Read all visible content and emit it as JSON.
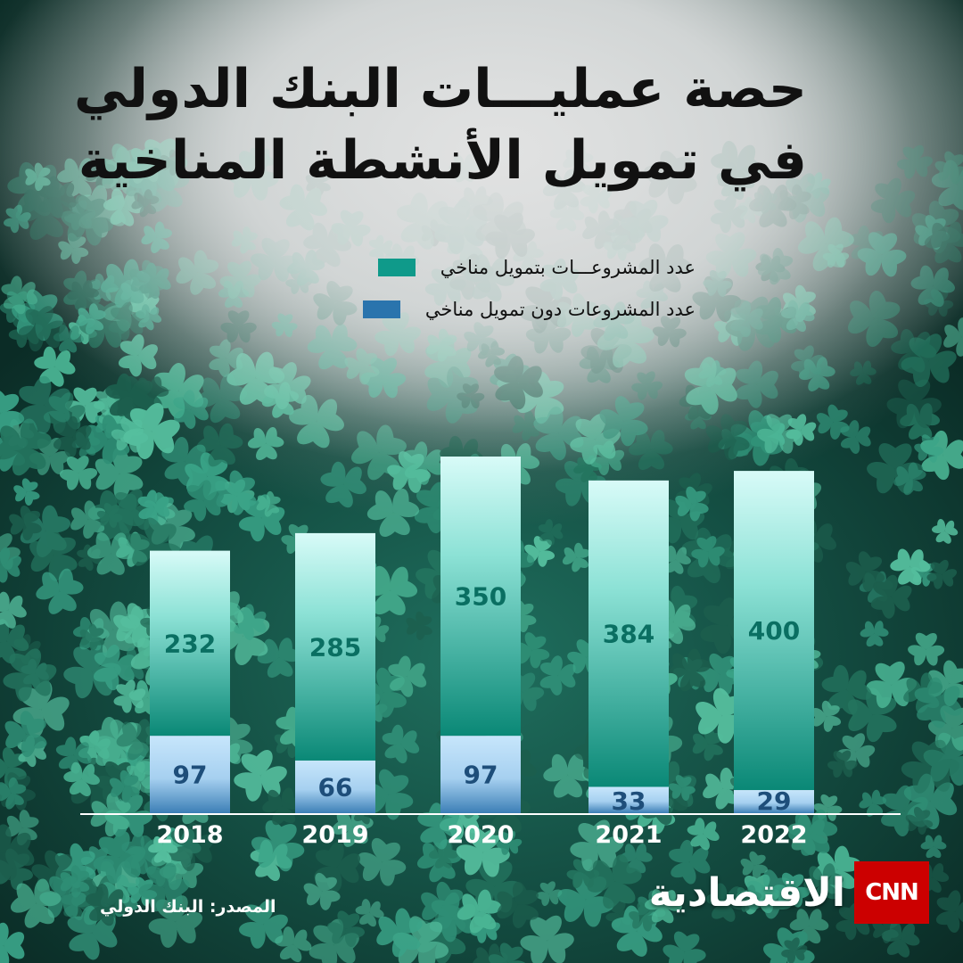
{
  "title_line1": "حصة عمليـــات البنك الدولي",
  "title_line2": "في تمويل الأنشطة المناخية",
  "legend": [
    {
      "label": "عدد المشروعـــات بتمويل مناخي",
      "color": "#0f9a8a"
    },
    {
      "label": "عدد المشروعات دون تمويل مناخي",
      "color": "#2a74ad"
    }
  ],
  "source": "المصدر: البنك الدولي",
  "brand": {
    "arabic": "الاقتصادية",
    "logo": "CNN"
  },
  "chart_data": {
    "type": "bar",
    "stacked": true,
    "categories": [
      "2018",
      "2019",
      "2020",
      "2021",
      "2022"
    ],
    "series": [
      {
        "name": "عدد المشروعات دون تمويل مناخي",
        "values": [
          97,
          66,
          97,
          33,
          29
        ],
        "color": "#2a74ad"
      },
      {
        "name": "عدد المشروعـــات بتمويل مناخي",
        "values": [
          232,
          285,
          350,
          384,
          400
        ],
        "color": "#0f9a8a"
      }
    ],
    "ylim": [
      0,
      447
    ],
    "grid": false,
    "legend_position": "top-right"
  }
}
